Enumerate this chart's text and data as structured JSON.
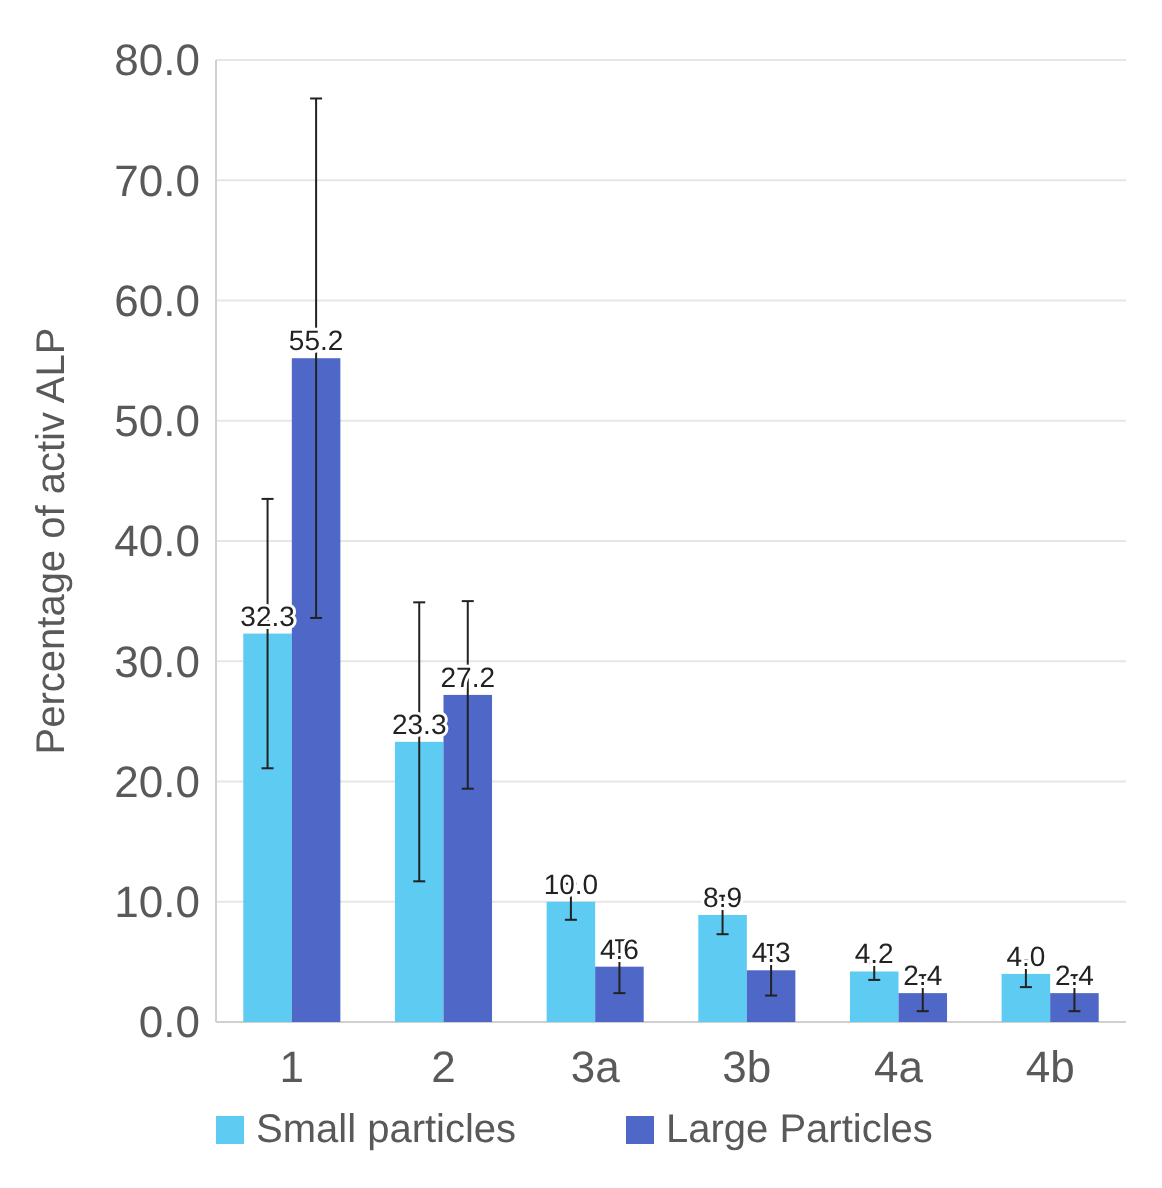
{
  "chart_data": {
    "type": "bar",
    "ylabel": "Percentage of activ ALP",
    "categories": [
      "1",
      "2",
      "3a",
      "3b",
      "4a",
      "4b"
    ],
    "series": [
      {
        "name": "Small particles",
        "color": "#5dcbf2",
        "values": [
          32.3,
          23.3,
          10.0,
          8.9,
          4.2,
          4.0
        ],
        "errors": [
          11.2,
          11.6,
          1.5,
          1.6,
          0.7,
          1.1
        ],
        "value_labels": [
          "32.3",
          "23.3",
          "10.0",
          "8.9",
          "4.2",
          "4.0"
        ]
      },
      {
        "name": "Large Particles",
        "color": "#4f67c6",
        "values": [
          55.2,
          27.2,
          4.6,
          4.3,
          2.4,
          2.4
        ],
        "errors": [
          21.6,
          7.8,
          2.2,
          2.1,
          1.5,
          1.5
        ],
        "value_labels": [
          "55.2",
          "27.2",
          "4.6",
          "4.3",
          "2.4",
          "2.4"
        ]
      }
    ],
    "ylim": [
      0,
      80
    ],
    "yticks": [
      {
        "value": 0,
        "label": "0.0"
      },
      {
        "value": 10,
        "label": "10.0"
      },
      {
        "value": 20,
        "label": "20.0"
      },
      {
        "value": 30,
        "label": "30.0"
      },
      {
        "value": 40,
        "label": "40.0"
      },
      {
        "value": 50,
        "label": "50.0"
      },
      {
        "value": 60,
        "label": "60.0"
      },
      {
        "value": 70,
        "label": "70.0"
      },
      {
        "value": 80,
        "label": "80.0"
      }
    ],
    "grid": "y",
    "legend": "bottom"
  }
}
